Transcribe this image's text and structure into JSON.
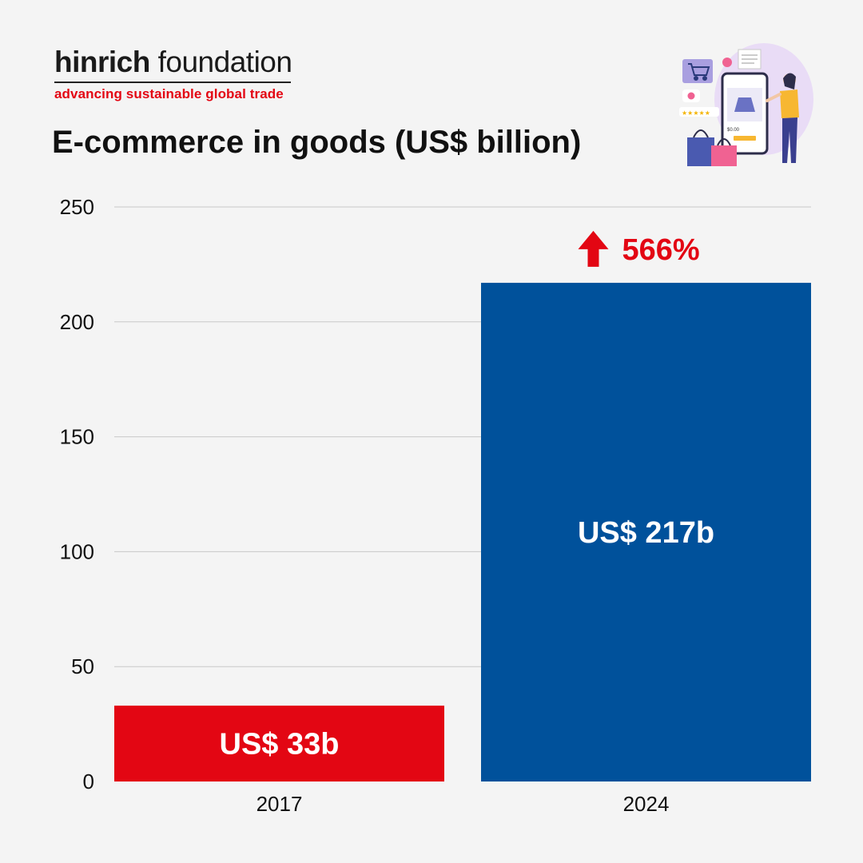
{
  "brand": {
    "name_bold": "hinrich",
    "name_light": " foundation",
    "tagline": "advancing sustainable global trade"
  },
  "colors": {
    "accent_red": "#e30613",
    "bar_2017": "#e30613",
    "bar_2024": "#00519b",
    "grid": "#c8c8c8",
    "background": "#f4f4f4"
  },
  "illustration": {
    "icon": "online-shopping-illustration",
    "price_text": "$0.00"
  },
  "chart_data": {
    "type": "bar",
    "title": "E-commerce in goods (US$ billion)",
    "categories": [
      "2017",
      "2024"
    ],
    "values": [
      33,
      217
    ],
    "data_labels": [
      "US$ 33b",
      "US$ 217b"
    ],
    "bar_colors": [
      "#e30613",
      "#00519b"
    ],
    "ylim": [
      0,
      250
    ],
    "yticks": [
      0,
      50,
      100,
      150,
      200,
      250
    ],
    "grid": true,
    "annotation": {
      "text": "566%",
      "icon": "up-arrow-icon",
      "category": "2024",
      "color": "#e30613"
    }
  }
}
